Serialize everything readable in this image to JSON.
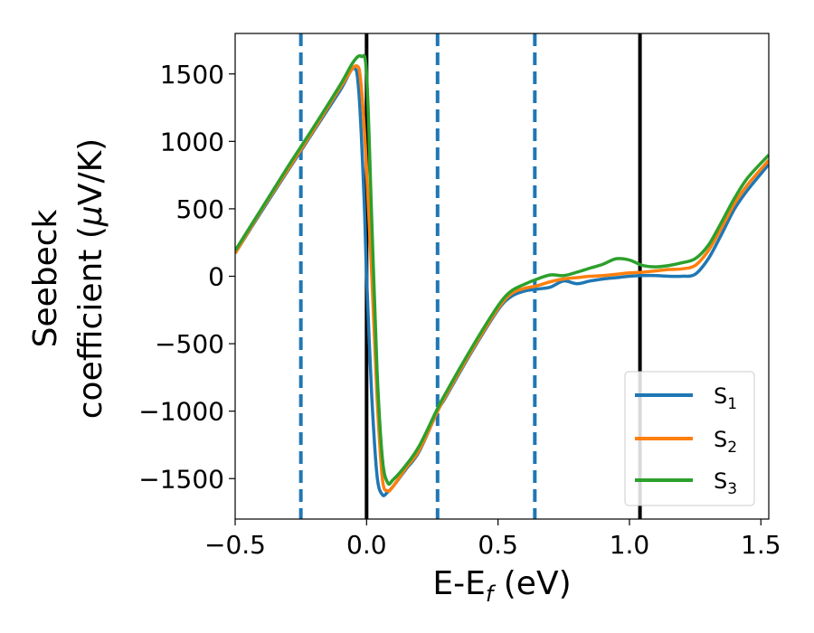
{
  "chart_data": {
    "type": "line",
    "xlabel": {
      "main": "E-E",
      "sub": "f",
      "tail": " (eV)"
    },
    "ylabel": {
      "line1": "Seebeck",
      "line2_pre": "coefficient  (",
      "line2_mu": "μ",
      "line2_post": "V/K)"
    },
    "xlim": [
      -0.5,
      1.53
    ],
    "ylim": [
      -1800,
      1800
    ],
    "xticks": [
      -0.5,
      0.0,
      0.5,
      1.0,
      1.5
    ],
    "xtick_labels": [
      "−0.5",
      "0.0",
      "0.5",
      "1.0",
      "1.5"
    ],
    "yticks": [
      -1500,
      -1000,
      -500,
      0,
      500,
      1000,
      1500
    ],
    "ytick_labels": [
      "−1500",
      "−1000",
      "−500",
      "0",
      "500",
      "1000",
      "1500"
    ],
    "legend": {
      "position": "lower-right"
    },
    "vlines_dashed": [
      -0.25,
      0.27,
      0.64
    ],
    "vlines_solid": [
      0.0,
      1.04
    ],
    "series": [
      {
        "name": "S",
        "sub": "1",
        "color": "#1f77b4",
        "x": [
          -0.5,
          -0.4,
          -0.3,
          -0.25,
          -0.2,
          -0.1,
          -0.05,
          -0.03,
          -0.01,
          0.0,
          0.02,
          0.04,
          0.06,
          0.08,
          0.1,
          0.15,
          0.2,
          0.27,
          0.3,
          0.4,
          0.5,
          0.55,
          0.6,
          0.65,
          0.7,
          0.75,
          0.8,
          0.85,
          0.9,
          0.95,
          1.0,
          1.05,
          1.1,
          1.15,
          1.2,
          1.25,
          1.3,
          1.35,
          1.4,
          1.45,
          1.53
        ],
        "y": [
          170,
          480,
          780,
          930,
          1080,
          1380,
          1540,
          1380,
          600,
          0,
          -900,
          -1480,
          -1620,
          -1600,
          -1560,
          -1430,
          -1300,
          -1000,
          -900,
          -560,
          -250,
          -150,
          -110,
          -95,
          -80,
          -35,
          -55,
          -35,
          -20,
          -10,
          0,
          5,
          5,
          0,
          0,
          15,
          130,
          310,
          500,
          640,
          830
        ]
      },
      {
        "name": "S",
        "sub": "2",
        "color": "#ff7f0e",
        "x": [
          -0.5,
          -0.4,
          -0.3,
          -0.25,
          -0.2,
          -0.1,
          -0.04,
          -0.02,
          0.0,
          0.02,
          0.04,
          0.06,
          0.08,
          0.1,
          0.15,
          0.2,
          0.27,
          0.3,
          0.4,
          0.5,
          0.55,
          0.6,
          0.65,
          0.7,
          0.75,
          0.8,
          0.85,
          0.9,
          0.95,
          1.0,
          1.05,
          1.1,
          1.15,
          1.2,
          1.25,
          1.3,
          1.35,
          1.4,
          1.45,
          1.53
        ],
        "y": [
          170,
          490,
          790,
          940,
          1090,
          1400,
          1560,
          1400,
          800,
          0,
          -900,
          -1500,
          -1590,
          -1560,
          -1420,
          -1290,
          -1000,
          -890,
          -550,
          -240,
          -130,
          -90,
          -70,
          -40,
          -20,
          -10,
          0,
          5,
          15,
          25,
          30,
          40,
          50,
          55,
          80,
          190,
          360,
          540,
          680,
          860
        ]
      },
      {
        "name": "S",
        "sub": "3",
        "color": "#2ca02c",
        "x": [
          -0.5,
          -0.4,
          -0.3,
          -0.25,
          -0.2,
          -0.1,
          -0.05,
          -0.02,
          0.0,
          0.02,
          0.04,
          0.06,
          0.08,
          0.1,
          0.15,
          0.2,
          0.27,
          0.3,
          0.4,
          0.5,
          0.55,
          0.6,
          0.65,
          0.7,
          0.75,
          0.8,
          0.85,
          0.9,
          0.95,
          1.0,
          1.05,
          1.1,
          1.15,
          1.2,
          1.25,
          1.3,
          1.35,
          1.4,
          1.45,
          1.53
        ],
        "y": [
          190,
          500,
          810,
          960,
          1110,
          1420,
          1590,
          1630,
          1500,
          400,
          -700,
          -1350,
          -1530,
          -1510,
          -1400,
          -1260,
          -980,
          -870,
          -530,
          -220,
          -110,
          -60,
          -20,
          10,
          5,
          30,
          60,
          90,
          130,
          120,
          80,
          70,
          80,
          100,
          130,
          230,
          400,
          580,
          730,
          900
        ]
      }
    ]
  }
}
